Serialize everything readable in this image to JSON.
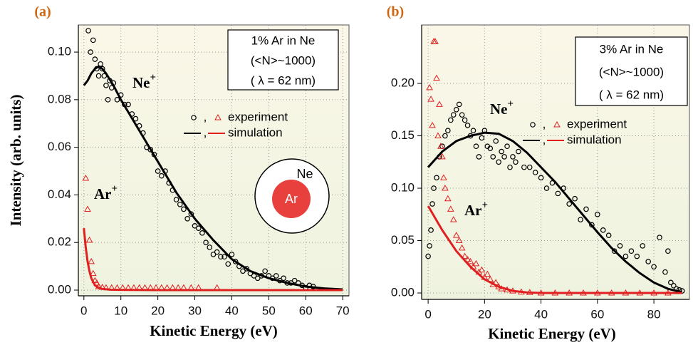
{
  "chart_data": [
    {
      "type": "scatter",
      "panel_label": "(a)",
      "xlabel": "Kinetic Energy (eV)",
      "ylabel": "Intensity (arb. units)",
      "xlim": [
        -1.5,
        71.7
      ],
      "ylim": [
        -0.0024,
        0.1114
      ],
      "xticks": [
        0,
        10,
        20,
        30,
        40,
        50,
        60,
        70
      ],
      "yticks": [
        {
          "value": 0,
          "label": "0.00"
        },
        {
          "value": 0.02,
          "label": "0.02"
        },
        {
          "value": 0.04,
          "label": "0.04"
        },
        {
          "value": 0.06,
          "label": "0.06"
        },
        {
          "value": 0.08,
          "label": "0.08"
        },
        {
          "value": 0.1,
          "label": "0.10"
        }
      ],
      "grid": true,
      "box": [
        "1% Ar in Ne",
        "(<N>~1000)",
        "( λ = 62 nm)"
      ],
      "diagram": {
        "outer": "Ne",
        "inner": "Ar"
      },
      "annotations": [
        {
          "text": "Ne",
          "sup": "+"
        },
        {
          "text": "Ar",
          "sup": "+"
        }
      ],
      "legend": [
        {
          "label": "experiment",
          "separator": ",",
          "markers": [
            "circle",
            "triangle"
          ]
        },
        {
          "label": "simulation",
          "separator": ",",
          "markers": [
            "line-black",
            "line-red"
          ]
        }
      ],
      "series": [
        {
          "marker": "circle",
          "color": "#000000",
          "x": [
            1.2,
            1.8,
            2.5,
            3,
            3.5,
            4,
            4.5,
            5,
            5.5,
            6,
            6.5,
            7,
            7.5,
            8,
            9,
            10,
            11,
            12,
            13,
            14,
            15,
            16,
            17,
            18,
            19,
            20,
            21,
            22,
            23,
            24,
            25,
            26,
            27,
            28,
            29,
            30,
            31,
            32,
            33,
            34,
            35,
            36,
            37,
            38,
            39,
            40,
            41,
            42,
            43,
            44,
            45,
            46,
            47,
            48,
            49,
            50,
            51,
            52,
            53,
            54,
            55,
            56,
            57,
            58,
            59,
            60,
            61,
            62
          ],
          "values": [
            0.109,
            0.1,
            0.105,
            0.097,
            0.093,
            0.09,
            0.095,
            0.093,
            0.09,
            0.086,
            0.08,
            0.088,
            0.085,
            0.087,
            0.08,
            0.082,
            0.078,
            0.078,
            0.074,
            0.072,
            0.069,
            0.066,
            0.06,
            0.059,
            0.057,
            0.05,
            0.048,
            0.05,
            0.045,
            0.042,
            0.038,
            0.036,
            0.034,
            0.03,
            0.032,
            0.027,
            0.026,
            0.024,
            0.02,
            0.018,
            0.015,
            0.016,
            0.014,
            0.014,
            0.011,
            0.015,
            0.012,
            0.01,
            0.008,
            0.009,
            0.007,
            0.006,
            0.005,
            0.006,
            0.008,
            0.006,
            0.005,
            0.006,
            0.004,
            0.005,
            0.003,
            0.003,
            0.004,
            0.003,
            0.002,
            0.001,
            0.002,
            0.0015
          ]
        },
        {
          "marker": "triangle",
          "color": "#e02020",
          "x": [
            0.5,
            1,
            1.5,
            2,
            2.5,
            3,
            3.5,
            4,
            5,
            6,
            7.5,
            9,
            10.5,
            12,
            13.5,
            15,
            16.5,
            18,
            19.5,
            21,
            22.5,
            24,
            25.5,
            27,
            29,
            31,
            36
          ],
          "values": [
            0.047,
            0.034,
            0.021,
            0.012,
            0.007,
            0.004,
            0.003,
            0.0015,
            0.0012,
            0.001,
            0.001,
            0.001,
            0.001,
            0.001,
            0.001,
            0.001,
            0.001,
            0.001,
            0.001,
            0.001,
            0.001,
            0.001,
            0.001,
            0.001,
            0.001,
            0.001,
            0.001
          ]
        },
        {
          "marker": "line",
          "color": "#000000",
          "x": [
            0,
            1,
            2,
            3,
            4,
            5,
            6,
            8,
            10,
            15,
            20,
            25,
            30,
            35,
            40,
            45,
            50,
            55,
            60,
            65,
            70
          ],
          "values": [
            0.086,
            0.088,
            0.091,
            0.093,
            0.094,
            0.093,
            0.091,
            0.086,
            0.08,
            0.067,
            0.054,
            0.041,
            0.03,
            0.021,
            0.013,
            0.008,
            0.005,
            0.003,
            0.0015,
            0.0007,
            0.0003
          ]
        },
        {
          "marker": "line",
          "color": "#e02020",
          "x": [
            0,
            0.5,
            1,
            1.5,
            2,
            3,
            4,
            5,
            7,
            10,
            20,
            30,
            40,
            50,
            60,
            70
          ],
          "values": [
            0.026,
            0.018,
            0.012,
            0.008,
            0.005,
            0.002,
            0.001,
            0.0005,
            0.0002,
            0.0001,
            0,
            0,
            0,
            0,
            0,
            0
          ]
        }
      ]
    },
    {
      "type": "scatter",
      "panel_label": "(b)",
      "xlabel": "Kinetic Energy (eV)",
      "xlim": [
        -2.3,
        92.6
      ],
      "ylim": [
        -0.0061,
        0.2558
      ],
      "xticks": [
        0,
        20,
        40,
        60,
        80
      ],
      "yticks": [
        {
          "value": 0,
          "label": "0.00"
        },
        {
          "value": 0.05,
          "label": "0.05"
        },
        {
          "value": 0.1,
          "label": "0.10"
        },
        {
          "value": 0.15,
          "label": "0.15"
        },
        {
          "value": 0.2,
          "label": "0.20"
        }
      ],
      "grid": true,
      "box": [
        "3% Ar in Ne",
        "(<N>~1000)",
        "( λ = 62 nm)"
      ],
      "annotations": [
        {
          "text": "Ne",
          "sup": "+"
        },
        {
          "text": "Ar",
          "sup": "+"
        }
      ],
      "legend": [
        {
          "label": "experiment",
          "separator": ",",
          "markers": [
            "circle",
            "triangle"
          ]
        },
        {
          "label": "simulation",
          "separator": ",",
          "markers": [
            "line-black",
            "line-red"
          ]
        }
      ],
      "series": [
        {
          "marker": "circle",
          "color": "#000000",
          "x": [
            0,
            0.5,
            1,
            1.5,
            2,
            3,
            4,
            5,
            6,
            7,
            8,
            9,
            10,
            11,
            12,
            13,
            14,
            15,
            16,
            17,
            18,
            19,
            20,
            21,
            22,
            23,
            24,
            25,
            26,
            27,
            28,
            29,
            30,
            31,
            32,
            34,
            36,
            38,
            40,
            42,
            44,
            46,
            48,
            50,
            52,
            54,
            56,
            58,
            60,
            62,
            64,
            66,
            68,
            70,
            72,
            74,
            76,
            78,
            80,
            82,
            84,
            85,
            86,
            87,
            88,
            89,
            90
          ],
          "values": [
            0.035,
            0.045,
            0.06,
            0.085,
            0.1,
            0.11,
            0.13,
            0.14,
            0.15,
            0.155,
            0.165,
            0.17,
            0.175,
            0.18,
            0.17,
            0.165,
            0.16,
            0.15,
            0.155,
            0.14,
            0.13,
            0.148,
            0.155,
            0.14,
            0.138,
            0.13,
            0.145,
            0.125,
            0.135,
            0.13,
            0.14,
            0.12,
            0.13,
            0.125,
            0.135,
            0.12,
            0.12,
            0.115,
            0.11,
            0.1,
            0.105,
            0.095,
            0.1,
            0.085,
            0.09,
            0.07,
            0.08,
            0.065,
            0.075,
            0.06,
            0.055,
            0.04,
            0.045,
            0.035,
            0.04,
            0.035,
            0.045,
            0.03,
            0.025,
            0.053,
            0.02,
            0.04,
            0.01,
            0.007,
            0.004,
            0.003,
            0.002
          ]
        },
        {
          "marker": "triangle",
          "color": "#e02020",
          "x": [
            0.5,
            1,
            1.5,
            2,
            2.5,
            3,
            3.5,
            4,
            4.5,
            5,
            5.5,
            6,
            7,
            8,
            9,
            10,
            11,
            12,
            13,
            14,
            15,
            16,
            17,
            18,
            19,
            20,
            21,
            22,
            23,
            24,
            25,
            26,
            28,
            30,
            33,
            36,
            40,
            45,
            50,
            55,
            60,
            65,
            70,
            75,
            80,
            85
          ],
          "values": [
            0.196,
            0.185,
            0.16,
            0.24,
            0.24,
            0.205,
            0.15,
            0.18,
            0.14,
            0.13,
            0.11,
            0.1,
            0.09,
            0.08,
            0.07,
            0.055,
            0.05,
            0.043,
            0.035,
            0.032,
            0.03,
            0.025,
            0.028,
            0.02,
            0.022,
            0.015,
            0.018,
            0.013,
            0.008,
            0.01,
            0.006,
            0.004,
            0.003,
            0.002,
            0.001,
            0.0005,
            0,
            0,
            0,
            0,
            0,
            0,
            0,
            0,
            0,
            0
          ]
        },
        {
          "marker": "line",
          "color": "#000000",
          "x": [
            0,
            5,
            10,
            15,
            20,
            25,
            30,
            35,
            40,
            45,
            50,
            55,
            60,
            65,
            70,
            75,
            80,
            85,
            88,
            90
          ],
          "values": [
            0.12,
            0.135,
            0.145,
            0.15,
            0.153,
            0.152,
            0.145,
            0.134,
            0.12,
            0.106,
            0.09,
            0.074,
            0.058,
            0.043,
            0.03,
            0.019,
            0.01,
            0.004,
            0.002,
            0.001
          ]
        },
        {
          "marker": "line",
          "color": "#e02020",
          "x": [
            0,
            5,
            10,
            15,
            20,
            25,
            30,
            35,
            40,
            50,
            60,
            70,
            80,
            90
          ],
          "values": [
            0.083,
            0.06,
            0.04,
            0.025,
            0.013,
            0.006,
            0.002,
            0.0005,
            0,
            0,
            0,
            0,
            0,
            0
          ]
        }
      ]
    }
  ]
}
